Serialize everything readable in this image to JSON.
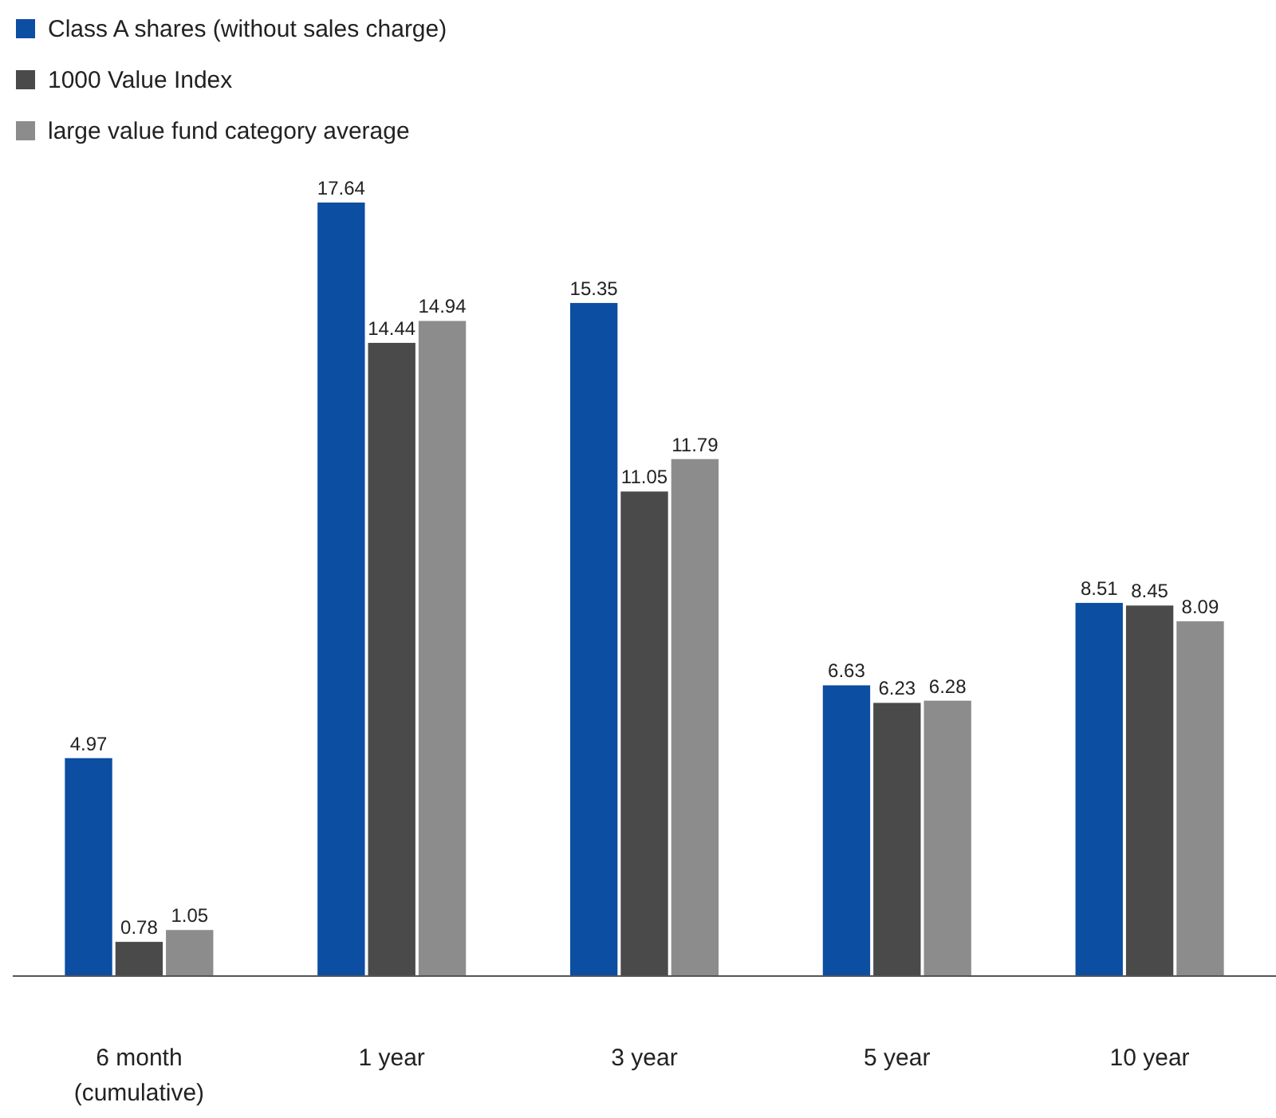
{
  "chart_data": {
    "type": "bar",
    "categories": [
      "6 month\n(cumulative)",
      "1 year",
      "3 year",
      "5 year",
      "10 year"
    ],
    "series": [
      {
        "name": "Class A shares (without sales charge)",
        "color": "#0b4ea2",
        "values": [
          4.97,
          17.64,
          15.35,
          6.63,
          8.51
        ]
      },
      {
        "name": "1000 Value Index",
        "color": "#4a4a4a",
        "values": [
          0.78,
          14.44,
          11.05,
          6.23,
          8.45
        ]
      },
      {
        "name": "large value fund category average",
        "color": "#8c8c8c",
        "values": [
          1.05,
          14.94,
          11.79,
          6.28,
          8.09
        ]
      }
    ],
    "data_labels": true,
    "legend": "top left",
    "grid": false
  }
}
